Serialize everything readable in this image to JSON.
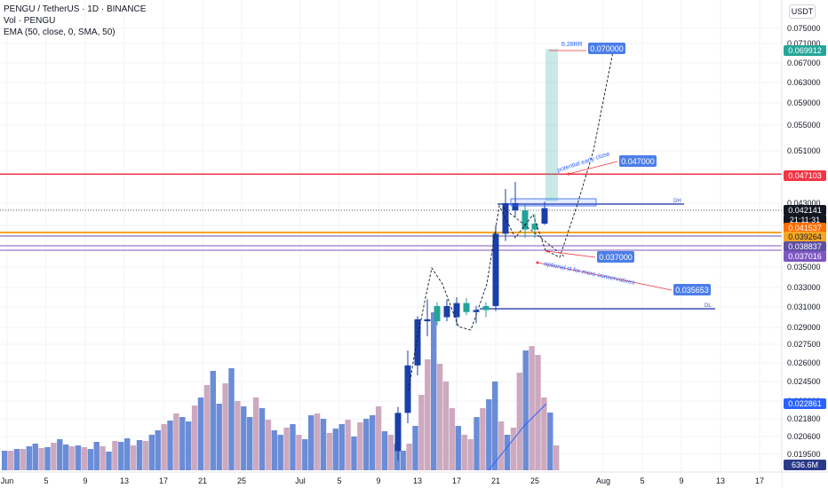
{
  "legend": {
    "line1": "PENGU / TetherUS · 1D · BINANCE",
    "line2": "Vol · PENGU",
    "line3": "EMA (50, close, 0, SMA, 50)"
  },
  "currency_button": "USDT",
  "chart_data": {
    "type": "candlestick",
    "x_ticks": [
      "Jun",
      "5",
      "9",
      "13",
      "17",
      "21",
      "25",
      "Jul",
      "5",
      "9",
      "13",
      "17",
      "21",
      "25",
      "Aug",
      "5",
      "9",
      "13",
      "17"
    ],
    "y_ticks": [
      "0.075000",
      "0.071000",
      "0.067000",
      "0.063000",
      "0.059000",
      "0.055000",
      "0.051000",
      "0.047000",
      "0.043000",
      "0.039000",
      "0.035000",
      "0.033000",
      "0.031000",
      "0.029000",
      "0.027500",
      "0.026000",
      "0.024500",
      "0.023000",
      "0.021800",
      "0.020600",
      "0.019500"
    ],
    "ylim": [
      0.0188,
      0.078
    ],
    "candles": [
      {
        "date": "Jul 11",
        "open": 0.0197,
        "high": 0.0226,
        "low": 0.0191,
        "close": 0.0222
      },
      {
        "date": "Jul 12",
        "open": 0.0222,
        "high": 0.027,
        "low": 0.0215,
        "close": 0.0258
      },
      {
        "date": "Jul 13",
        "open": 0.0258,
        "high": 0.0301,
        "low": 0.025,
        "close": 0.0298
      },
      {
        "date": "Jul 14",
        "open": 0.0298,
        "high": 0.0318,
        "low": 0.0282,
        "close": 0.0296
      },
      {
        "date": "Jul 15",
        "open": 0.0296,
        "high": 0.0315,
        "low": 0.0292,
        "close": 0.0311
      },
      {
        "date": "Jul 16",
        "open": 0.0311,
        "high": 0.0318,
        "low": 0.0296,
        "close": 0.03
      },
      {
        "date": "Jul 17",
        "open": 0.03,
        "high": 0.032,
        "low": 0.0292,
        "close": 0.0314
      },
      {
        "date": "Jul 18",
        "open": 0.0314,
        "high": 0.0319,
        "low": 0.0302,
        "close": 0.0305
      },
      {
        "date": "Jul 19",
        "open": 0.0305,
        "high": 0.0311,
        "low": 0.0294,
        "close": 0.0307
      },
      {
        "date": "Jul 20",
        "open": 0.0307,
        "high": 0.0315,
        "low": 0.03,
        "close": 0.0311
      },
      {
        "date": "Jul 21",
        "open": 0.0311,
        "high": 0.039,
        "low": 0.0306,
        "close": 0.0382
      },
      {
        "date": "Jul 22",
        "open": 0.0382,
        "high": 0.045,
        "low": 0.0375,
        "close": 0.043
      },
      {
        "date": "Jul 23",
        "open": 0.043,
        "high": 0.046,
        "low": 0.0405,
        "close": 0.0417
      },
      {
        "date": "Jul 24",
        "open": 0.0417,
        "high": 0.0428,
        "low": 0.0378,
        "close": 0.0386
      },
      {
        "date": "Jul 25",
        "open": 0.0386,
        "high": 0.041,
        "low": 0.0378,
        "close": 0.0393
      },
      {
        "date": "Jul 26",
        "open": 0.0393,
        "high": 0.0432,
        "low": 0.0391,
        "close": 0.0421
      }
    ],
    "price_levels": [
      {
        "label": "0.047103",
        "value": 0.047103,
        "color": "#f23645"
      },
      {
        "label": "0.042141",
        "value": 0.042141,
        "color": "#131722"
      },
      {
        "label": "0.041537",
        "value": 0.041537,
        "color": "#ff6d00"
      },
      {
        "label": "0.039264",
        "value": 0.039264,
        "color": "#f5a623"
      },
      {
        "label": "0.038837",
        "value": 0.038837,
        "color": "#5e4fa2"
      },
      {
        "label": "0.037016",
        "value": 0.037016,
        "color": "#7e57c2"
      },
      {
        "label": "0.069912",
        "value": 0.069912,
        "color": "#26a69a"
      }
    ],
    "countdown": "21:11:31",
    "volume_labels": [
      "0.022861",
      "636.6M"
    ],
    "annotations": {
      "target_main": "0.070000",
      "rr_label": "6.28RR",
      "target_early": "0.047000",
      "early_note": "potential early close",
      "sl_main": "0.037000",
      "sl_alt": "0.035653",
      "sl_note": "optional sl for more conservatives",
      "dh": "DH",
      "dl": "DL"
    },
    "colors": {
      "candle_up": "#1a3fa8",
      "candle_teal": "#22a39a",
      "vol_blue": "#5b7fd1",
      "vol_pink": "#c8a0b8"
    }
  }
}
